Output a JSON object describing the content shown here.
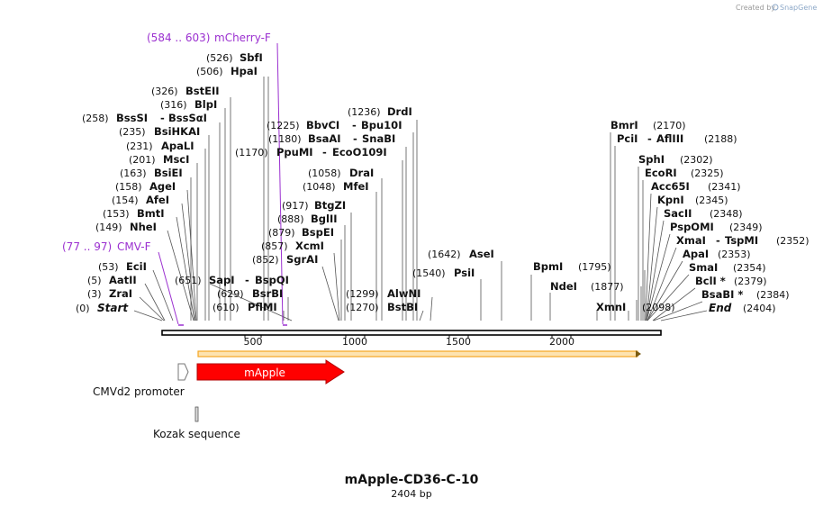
{
  "credit": {
    "prefix": "Created by",
    "brand": "SnapGene"
  },
  "title": "mApple-CD36-C-10",
  "subtitle": "2404 bp",
  "colors": {
    "primer": "#9b30d0",
    "feature_red": "#ff0000",
    "orf": "#f5a623",
    "backbone": "#000000"
  },
  "ticks": [
    "500",
    "1000",
    "1500",
    "2000"
  ],
  "ends": {
    "start_pos": "(0)",
    "start_label": "Start",
    "end_pos": "(2404)",
    "end_label": "End"
  },
  "primers": [
    {
      "pos": "(584 .. 603)",
      "name": "mCherry-F"
    },
    {
      "pos": "(77 .. 97)",
      "name": "CMV-F"
    }
  ],
  "sites_left": [
    {
      "pos": "(526)",
      "name": "SbfI"
    },
    {
      "pos": "(506)",
      "name": "HpaI"
    },
    {
      "pos": "(326)",
      "name": "BstEII"
    },
    {
      "pos": "(316)",
      "name": "BlpI"
    },
    {
      "pos": "(258)",
      "name": "BssSI",
      "name2": "BssSαI"
    },
    {
      "pos": "(235)",
      "name": "BsiHKAI"
    },
    {
      "pos": "(231)",
      "name": "ApaLI"
    },
    {
      "pos": "(201)",
      "name": "MscI"
    },
    {
      "pos": "(163)",
      "name": "BsiEI"
    },
    {
      "pos": "(158)",
      "name": "AgeI"
    },
    {
      "pos": "(154)",
      "name": "AfeI"
    },
    {
      "pos": "(153)",
      "name": "BmtI"
    },
    {
      "pos": "(149)",
      "name": "NheI"
    },
    {
      "pos": "(53)",
      "name": "EciI"
    },
    {
      "pos": "(5)",
      "name": "AatII"
    },
    {
      "pos": "(3)",
      "name": "ZraI"
    }
  ],
  "sites_mid": [
    {
      "pos": "(651)",
      "name": "SapI",
      "name2": "BspQI"
    },
    {
      "pos": "(629)",
      "name": "BsrBI"
    },
    {
      "pos": "(610)",
      "name": "PflMI"
    },
    {
      "pos": "(1236)",
      "name": "DrdI"
    },
    {
      "pos": "(1225)",
      "name": "BbvCI",
      "name2": "Bpu10I"
    },
    {
      "pos": "(1180)",
      "name": "BsaAI",
      "name2": "SnaBI"
    },
    {
      "pos": "(1170)",
      "name": "PpuMI",
      "name2": "EcoO109I"
    },
    {
      "pos": "(1058)",
      "name": "DraI"
    },
    {
      "pos": "(1048)",
      "name": "MfeI"
    },
    {
      "pos": "(917)",
      "name": "BtgZI"
    },
    {
      "pos": "(888)",
      "name": "BglII"
    },
    {
      "pos": "(879)",
      "name": "BspEI"
    },
    {
      "pos": "(857)",
      "name": "XcmI"
    },
    {
      "pos": "(852)",
      "name": "SgrAI"
    },
    {
      "pos": "(1299)",
      "name": "AlwNI"
    },
    {
      "pos": "(1270)",
      "name": "BstBI"
    },
    {
      "pos": "(1642)",
      "name": "AseI"
    },
    {
      "pos": "(1540)",
      "name": "PsiI"
    }
  ],
  "sites_right": [
    {
      "pos": "(1795)",
      "name": "BpmI"
    },
    {
      "pos": "(1877)",
      "name": "NdeI"
    },
    {
      "pos": "(2098)",
      "name": "XmnI"
    },
    {
      "pos": "(2170)",
      "name": "BmrI"
    },
    {
      "pos": "(2188)",
      "name": "PciI",
      "name2": "AflIII"
    },
    {
      "pos": "(2302)",
      "name": "SphI"
    },
    {
      "pos": "(2325)",
      "name": "EcoRI"
    },
    {
      "pos": "(2341)",
      "name": "Acc65I"
    },
    {
      "pos": "(2345)",
      "name": "KpnI"
    },
    {
      "pos": "(2348)",
      "name": "SacII"
    },
    {
      "pos": "(2349)",
      "name": "PspOMI"
    },
    {
      "pos": "(2352)",
      "name": "XmaI",
      "name2": "TspMI"
    },
    {
      "pos": "(2353)",
      "name": "ApaI"
    },
    {
      "pos": "(2354)",
      "name": "SmaI"
    },
    {
      "pos": "(2379)",
      "name": "BclI *"
    },
    {
      "pos": "(2384)",
      "name": "BsaBI *"
    }
  ],
  "features": [
    {
      "name": "mApple",
      "type": "cds"
    },
    {
      "name": "CMVd2 promoter",
      "type": "promoter"
    },
    {
      "name": "Kozak sequence",
      "type": "kozak"
    }
  ]
}
